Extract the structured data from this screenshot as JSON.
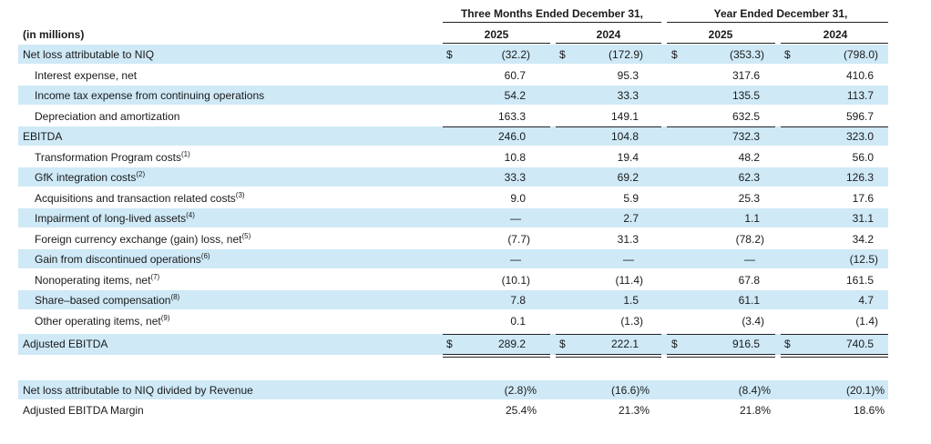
{
  "header": {
    "group1": "Three Months Ended December 31,",
    "group2": "Year Ended December 31,",
    "units": "(in millions)",
    "years": [
      "2025",
      "2024",
      "2025",
      "2024"
    ]
  },
  "currency_symbol": "$",
  "rows": [
    {
      "label": "Net loss attributable to NIQ",
      "sup": "",
      "values": [
        "(32.2)",
        "(172.9)",
        "(353.3)",
        "(798.0)"
      ]
    },
    {
      "label": "Interest expense, net",
      "sup": "",
      "values": [
        "60.7",
        "95.3",
        "317.6",
        "410.6"
      ]
    },
    {
      "label": "Income tax expense from continuing operations",
      "sup": "",
      "values": [
        "54.2",
        "33.3",
        "135.5",
        "113.7"
      ]
    },
    {
      "label": "Depreciation and amortization",
      "sup": "",
      "values": [
        "163.3",
        "149.1",
        "632.5",
        "596.7"
      ]
    },
    {
      "label": "EBITDA",
      "sup": "",
      "values": [
        "246.0",
        "104.8",
        "732.3",
        "323.0"
      ]
    },
    {
      "label": "Transformation Program costs",
      "sup": "(1)",
      "values": [
        "10.8",
        "19.4",
        "48.2",
        "56.0"
      ]
    },
    {
      "label": "GfK integration costs",
      "sup": "(2)",
      "values": [
        "33.3",
        "69.2",
        "62.3",
        "126.3"
      ]
    },
    {
      "label": "Acquisitions and transaction related costs",
      "sup": "(3)",
      "values": [
        "9.0",
        "5.9",
        "25.3",
        "17.6"
      ]
    },
    {
      "label": "Impairment of long-lived assets",
      "sup": "(4)",
      "values": [
        "—",
        "2.7",
        "1.1",
        "31.1"
      ]
    },
    {
      "label": "Foreign currency exchange (gain) loss, net",
      "sup": "(5)",
      "values": [
        "(7.7)",
        "31.3",
        "(78.2)",
        "34.2"
      ]
    },
    {
      "label": "Gain from discontinued operations",
      "sup": "(6)",
      "values": [
        "—",
        "—",
        "—",
        "(12.5)"
      ]
    },
    {
      "label": "Nonoperating items, net",
      "sup": "(7)",
      "values": [
        "(10.1)",
        "(11.4)",
        "67.8",
        "161.5"
      ]
    },
    {
      "label": "Share–based compensation",
      "sup": "(8)",
      "values": [
        "7.8",
        "1.5",
        "61.1",
        "4.7"
      ]
    },
    {
      "label": "Other operating items, net",
      "sup": "(9)",
      "values": [
        "0.1",
        "(1.3)",
        "(3.4)",
        "(1.4)"
      ]
    },
    {
      "label": "Adjusted EBITDA",
      "sup": "",
      "values": [
        "289.2",
        "222.1",
        "916.5",
        "740.5"
      ]
    }
  ],
  "ratios": [
    {
      "label": "Net loss attributable to NIQ divided by Revenue",
      "values": [
        "(2.8)%",
        "(16.6)%",
        "(8.4)%",
        "(20.1)%"
      ]
    },
    {
      "label": "Adjusted EBITDA Margin",
      "values": [
        "25.4%",
        "21.3%",
        "21.8%",
        "18.6%"
      ]
    }
  ]
}
